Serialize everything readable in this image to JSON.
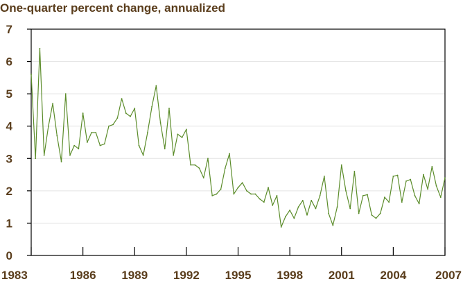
{
  "chart_data": {
    "type": "line",
    "title": "One-quarter percent change, annualized",
    "xlabel": "",
    "ylabel": "",
    "xlim": [
      1983.0,
      2007.0
    ],
    "ylim": [
      0,
      7
    ],
    "grid": true,
    "x_ticks": [
      1983,
      1986,
      1989,
      1992,
      1995,
      1998,
      2001,
      2004,
      2007
    ],
    "x_tick_labels": [
      "1983",
      "1986",
      "1989",
      "1992",
      "1995",
      "1998",
      "2001",
      "2004",
      "2007"
    ],
    "y_ticks": [
      0,
      1,
      2,
      3,
      4,
      5,
      6,
      7
    ],
    "y_tick_labels": [
      "0",
      "1",
      "2",
      "3",
      "4",
      "5",
      "6",
      "7"
    ],
    "series": [
      {
        "color": "#5b8c2a",
        "points": [
          [
            1983.0,
            5.6
          ],
          [
            1983.25,
            3.0
          ],
          [
            1983.5,
            6.4
          ],
          [
            1983.75,
            3.1
          ],
          [
            1984.0,
            4.0
          ],
          [
            1984.25,
            4.7
          ],
          [
            1984.5,
            3.7
          ],
          [
            1984.75,
            2.9
          ],
          [
            1985.0,
            5.0
          ],
          [
            1985.25,
            3.1
          ],
          [
            1985.5,
            3.4
          ],
          [
            1985.75,
            3.3
          ],
          [
            1986.0,
            4.4
          ],
          [
            1986.25,
            3.5
          ],
          [
            1986.5,
            3.8
          ],
          [
            1986.75,
            3.8
          ],
          [
            1987.0,
            3.4
          ],
          [
            1987.25,
            3.45
          ],
          [
            1987.5,
            4.0
          ],
          [
            1987.75,
            4.05
          ],
          [
            1988.0,
            4.25
          ],
          [
            1988.25,
            4.85
          ],
          [
            1988.5,
            4.4
          ],
          [
            1988.75,
            4.3
          ],
          [
            1989.0,
            4.55
          ],
          [
            1989.25,
            3.4
          ],
          [
            1989.5,
            3.1
          ],
          [
            1989.75,
            3.8
          ],
          [
            1990.0,
            4.6
          ],
          [
            1990.25,
            5.25
          ],
          [
            1990.5,
            4.1
          ],
          [
            1990.75,
            3.3
          ],
          [
            1991.0,
            4.55
          ],
          [
            1991.25,
            3.1
          ],
          [
            1991.5,
            3.75
          ],
          [
            1991.75,
            3.65
          ],
          [
            1992.0,
            3.9
          ],
          [
            1992.25,
            2.8
          ],
          [
            1992.5,
            2.8
          ],
          [
            1992.75,
            2.7
          ],
          [
            1993.0,
            2.4
          ],
          [
            1993.25,
            3.0
          ],
          [
            1993.5,
            1.85
          ],
          [
            1993.75,
            1.9
          ],
          [
            1994.0,
            2.05
          ],
          [
            1994.25,
            2.7
          ],
          [
            1994.5,
            3.15
          ],
          [
            1994.75,
            1.9
          ],
          [
            1995.0,
            2.1
          ],
          [
            1995.25,
            2.25
          ],
          [
            1995.5,
            2.0
          ],
          [
            1995.75,
            1.9
          ],
          [
            1996.0,
            1.9
          ],
          [
            1996.25,
            1.75
          ],
          [
            1996.5,
            1.65
          ],
          [
            1996.75,
            2.1
          ],
          [
            1997.0,
            1.55
          ],
          [
            1997.25,
            1.85
          ],
          [
            1997.5,
            0.88
          ],
          [
            1997.75,
            1.2
          ],
          [
            1998.0,
            1.4
          ],
          [
            1998.25,
            1.15
          ],
          [
            1998.5,
            1.5
          ],
          [
            1998.75,
            1.7
          ],
          [
            1999.0,
            1.25
          ],
          [
            1999.25,
            1.7
          ],
          [
            1999.5,
            1.45
          ],
          [
            1999.75,
            1.85
          ],
          [
            2000.0,
            2.45
          ],
          [
            2000.25,
            1.3
          ],
          [
            2000.5,
            0.93
          ],
          [
            2000.75,
            1.5
          ],
          [
            2001.0,
            2.8
          ],
          [
            2001.25,
            2.0
          ],
          [
            2001.5,
            1.45
          ],
          [
            2001.75,
            2.6
          ],
          [
            2002.0,
            1.3
          ],
          [
            2002.25,
            1.85
          ],
          [
            2002.5,
            1.88
          ],
          [
            2002.75,
            1.25
          ],
          [
            2003.0,
            1.15
          ],
          [
            2003.25,
            1.3
          ],
          [
            2003.5,
            1.8
          ],
          [
            2003.75,
            1.65
          ],
          [
            2004.0,
            2.45
          ],
          [
            2004.25,
            2.48
          ],
          [
            2004.5,
            1.65
          ],
          [
            2004.75,
            2.3
          ],
          [
            2005.0,
            2.35
          ],
          [
            2005.25,
            1.85
          ],
          [
            2005.5,
            1.6
          ],
          [
            2005.75,
            2.5
          ],
          [
            2006.0,
            2.05
          ],
          [
            2006.25,
            2.75
          ],
          [
            2006.5,
            2.15
          ],
          [
            2006.75,
            1.8
          ],
          [
            2007.0,
            2.4
          ]
        ]
      }
    ]
  }
}
